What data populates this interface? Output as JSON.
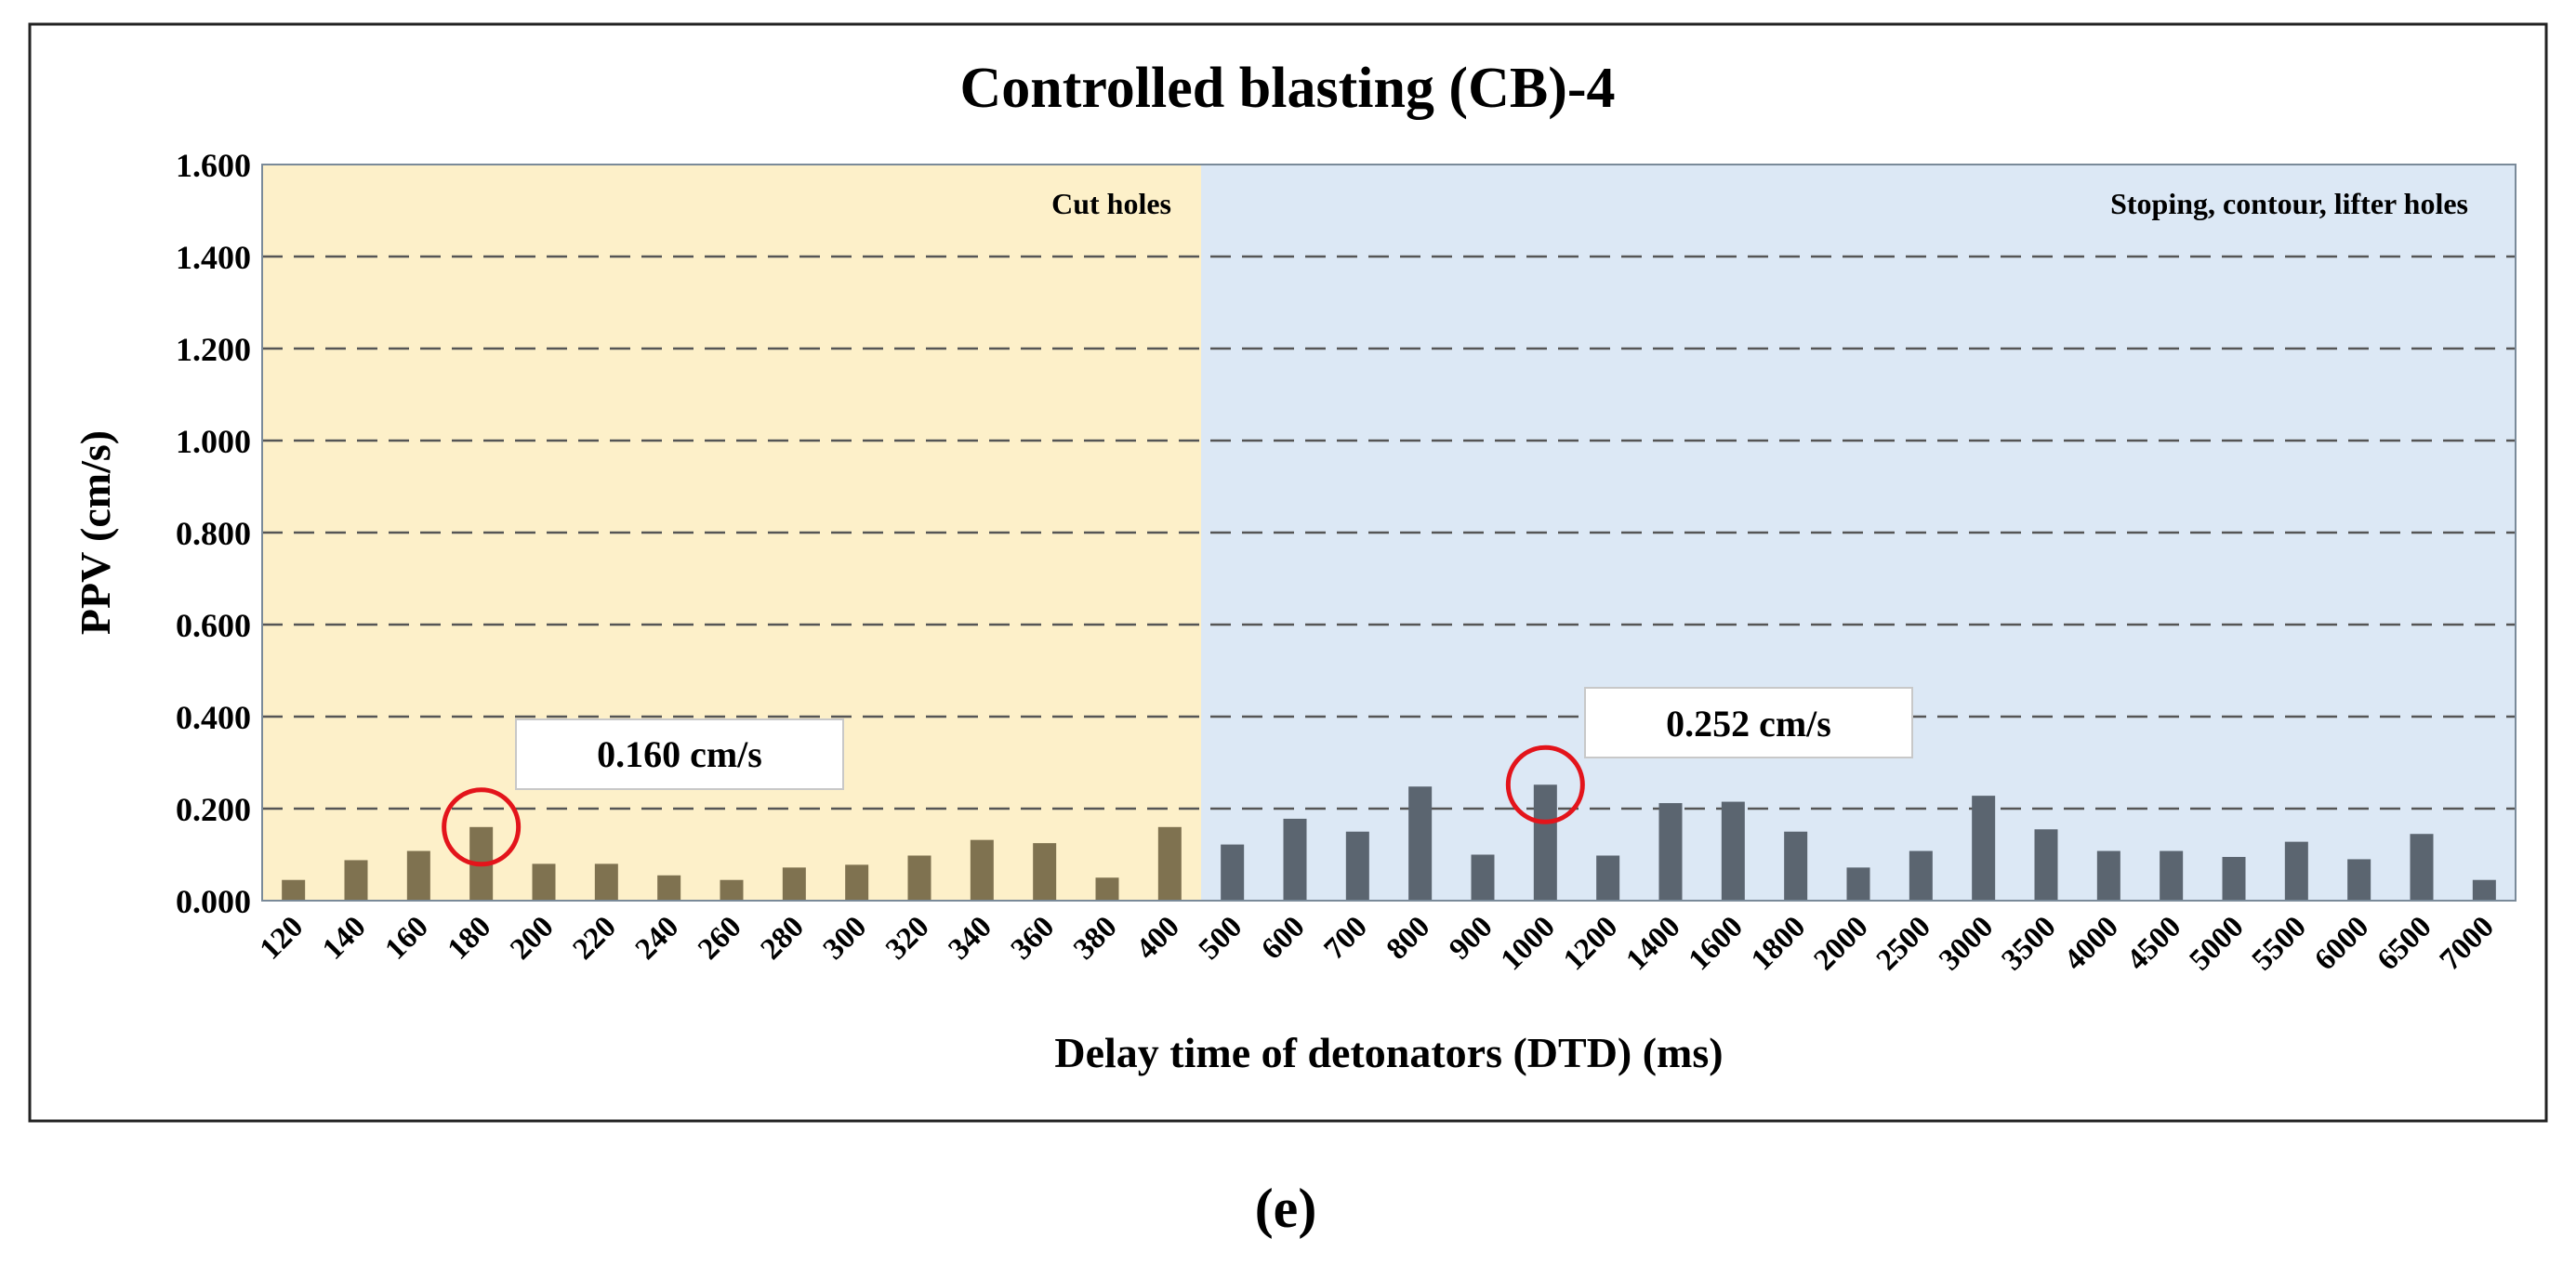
{
  "chart_data": {
    "type": "bar",
    "title": "Controlled blasting (CB)-4",
    "xlabel": "Delay time of detonators (DTD) (ms)",
    "ylabel": "PPV (cm/s)",
    "ylim": [
      0,
      1.6
    ],
    "yticks": [
      "0.000",
      "0.200",
      "0.400",
      "0.600",
      "0.800",
      "1.000",
      "1.200",
      "1.400",
      "1.600"
    ],
    "grid": "dashed horizontal",
    "categories": [
      "120",
      "140",
      "160",
      "180",
      "200",
      "220",
      "240",
      "260",
      "280",
      "300",
      "320",
      "340",
      "360",
      "380",
      "400",
      "500",
      "600",
      "700",
      "800",
      "900",
      "1000",
      "1200",
      "1400",
      "1600",
      "1800",
      "2000",
      "2500",
      "3000",
      "3500",
      "4000",
      "4500",
      "5000",
      "5500",
      "6000",
      "6500",
      "7000"
    ],
    "values": [
      0.045,
      0.088,
      0.108,
      0.16,
      0.08,
      0.08,
      0.055,
      0.045,
      0.072,
      0.078,
      0.098,
      0.132,
      0.125,
      0.05,
      0.16,
      0.122,
      0.178,
      0.15,
      0.248,
      0.1,
      0.252,
      0.098,
      0.212,
      0.215,
      0.15,
      0.072,
      0.108,
      0.228,
      0.155,
      0.108,
      0.108,
      0.095,
      0.128,
      0.09,
      0.145,
      0.045
    ],
    "regions": [
      {
        "name": "Cut holes",
        "from": "120",
        "to": "400",
        "color": "#fdf0c9",
        "bar_color": "#7f7250"
      },
      {
        "name": "Stoping, contour, lifter holes",
        "from": "500",
        "to": "7000",
        "color": "#dce8f5",
        "bar_color": "#5b6570"
      }
    ],
    "annotations": [
      {
        "category": "180",
        "value": 0.16,
        "label": "0.160 cm/s"
      },
      {
        "category": "1000",
        "value": 0.252,
        "label": "0.252 cm/s"
      }
    ],
    "highlight_color": "#e3141b"
  },
  "caption": "(e)"
}
